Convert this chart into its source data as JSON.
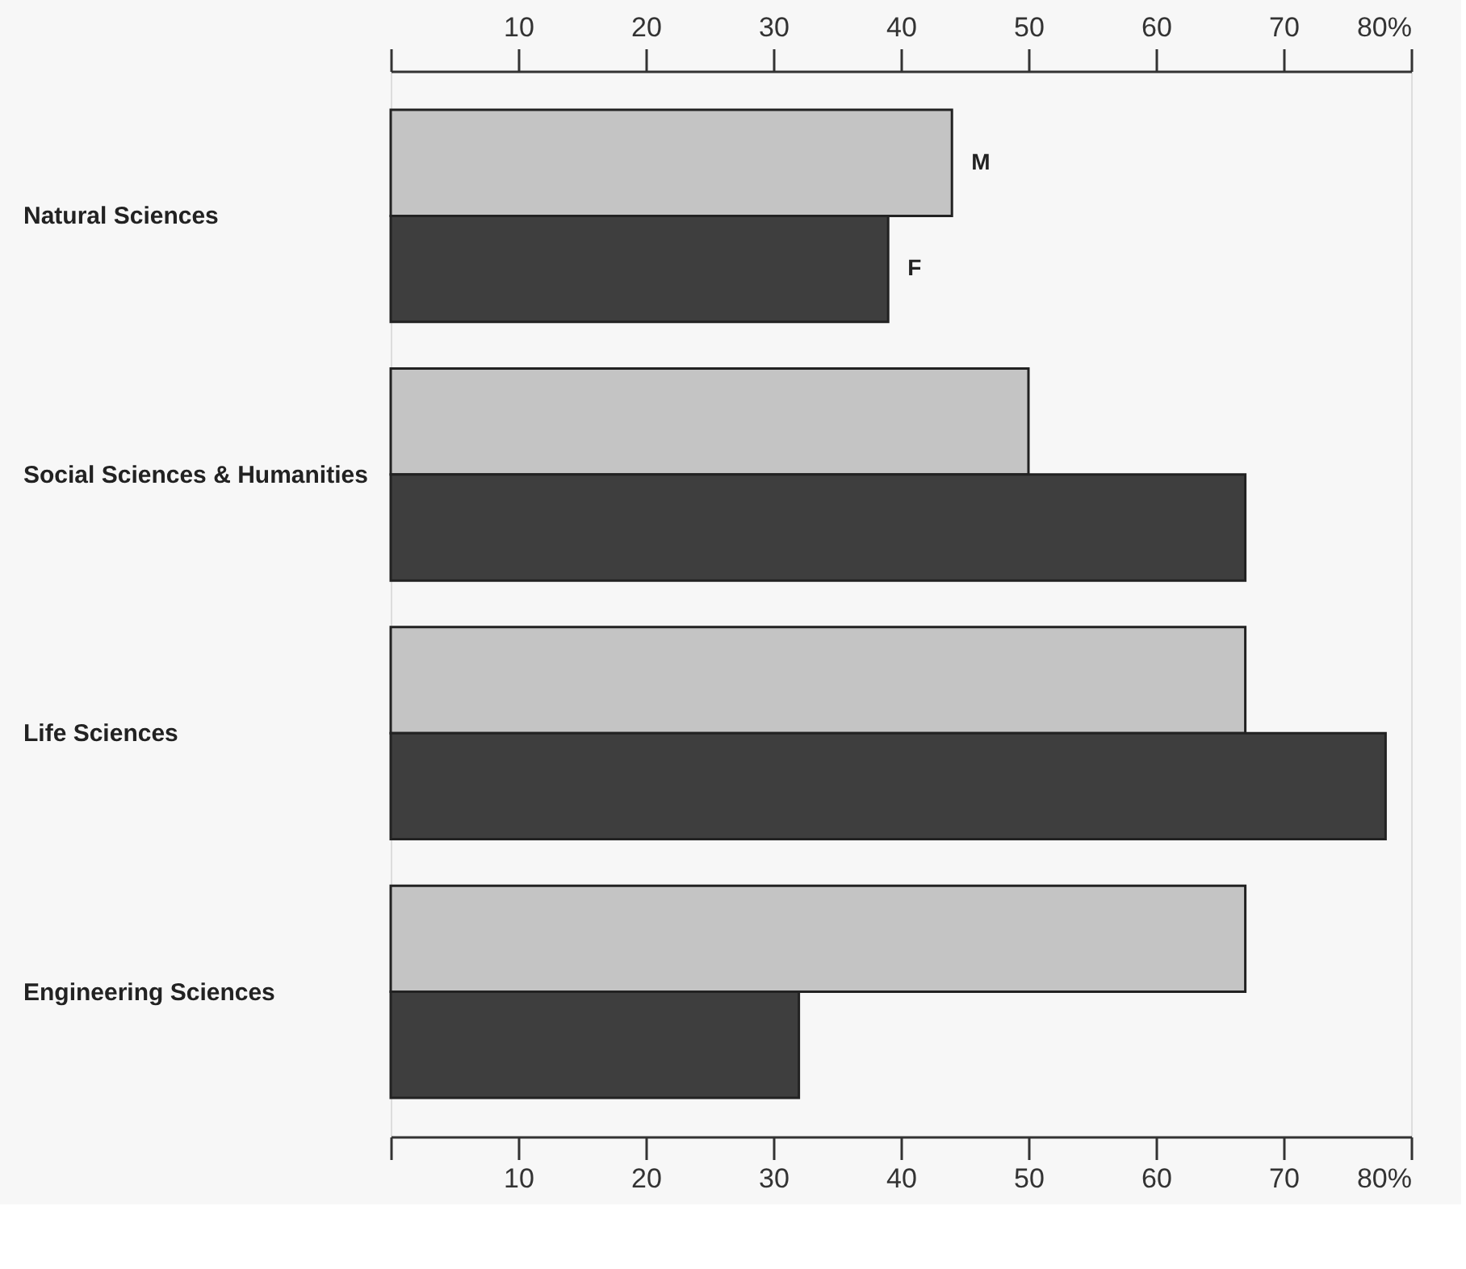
{
  "chart_data": {
    "type": "bar",
    "orientation": "horizontal",
    "categories": [
      "Natural Sciences",
      "Social Sciences & Humanities",
      "Life Sciences",
      "Engineering Sciences"
    ],
    "series": [
      {
        "name": "M",
        "color": "#c4c4c4",
        "values": [
          44,
          50,
          67,
          67
        ]
      },
      {
        "name": "F",
        "color": "#3e3e3e",
        "values": [
          39,
          67,
          78,
          32
        ]
      }
    ],
    "xlim": [
      0,
      80
    ],
    "xticks": [
      {
        "value": 0,
        "label": null
      },
      10,
      20,
      30,
      40,
      50,
      60,
      70,
      {
        "value": 80,
        "label": "80%"
      }
    ],
    "x2lim": [
      0,
      80
    ],
    "x2ticks": [
      {
        "value": 0,
        "label": null
      },
      10,
      20,
      30,
      40,
      50,
      60,
      70,
      {
        "value": 80,
        "label": "80%"
      }
    ],
    "grid": false,
    "legend": false
  }
}
